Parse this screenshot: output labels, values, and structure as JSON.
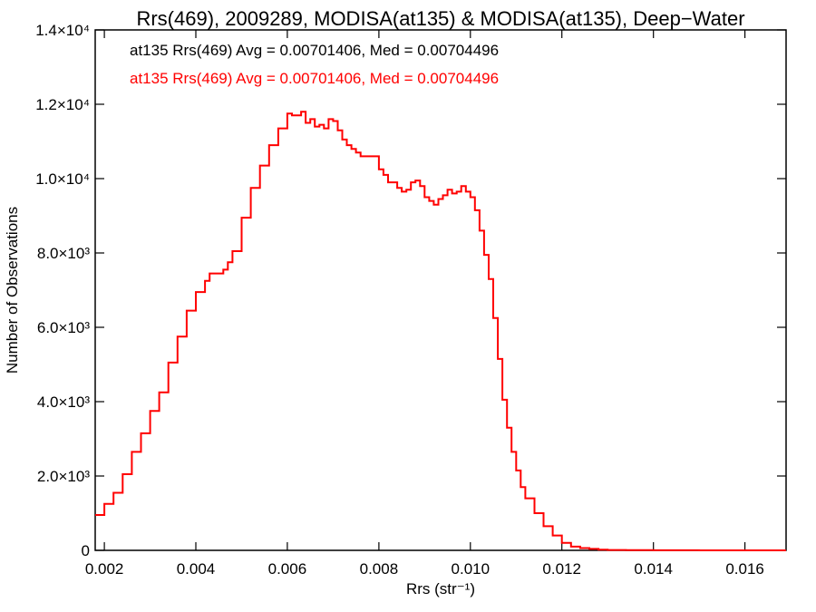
{
  "chart_data": {
    "type": "line",
    "title": "Rrs(469), 2009289, MODISA(at135) & MODISA(at135), Deep−Water",
    "xlabel": "Rrs (str⁻¹)",
    "ylabel": "Number of Observations",
    "xlim": [
      0.0018,
      0.0169
    ],
    "ylim": [
      0,
      14000
    ],
    "x_ticks": [
      {
        "value": 0.002,
        "label": "0.002"
      },
      {
        "value": 0.004,
        "label": "0.004"
      },
      {
        "value": 0.006,
        "label": "0.006"
      },
      {
        "value": 0.008,
        "label": "0.008"
      },
      {
        "value": 0.01,
        "label": "0.010"
      },
      {
        "value": 0.012,
        "label": "0.012"
      },
      {
        "value": 0.014,
        "label": "0.014"
      },
      {
        "value": 0.016,
        "label": "0.016"
      }
    ],
    "y_ticks": [
      {
        "value": 0,
        "label": "0"
      },
      {
        "value": 2000,
        "label": "2.0×10³"
      },
      {
        "value": 4000,
        "label": "4.0×10³"
      },
      {
        "value": 6000,
        "label": "6.0×10³"
      },
      {
        "value": 8000,
        "label": "8.0×10³"
      },
      {
        "value": 10000,
        "label": "1.0×10⁴"
      },
      {
        "value": 12000,
        "label": "1.2×10⁴"
      },
      {
        "value": 14000,
        "label": "1.4×10⁴"
      }
    ],
    "annotations": [
      {
        "text": "at135 Rrs(469) Avg = 0.00701406, Med = 0.00704496",
        "color": "#000000"
      },
      {
        "text": "at135 Rrs(469) Avg = 0.00701406, Med = 0.00704496",
        "color": "#ff0000"
      }
    ],
    "series": [
      {
        "color": "#ff0000",
        "x": [
          0.0018,
          0.002,
          0.0022,
          0.0024,
          0.0026,
          0.0028,
          0.003,
          0.0032,
          0.0034,
          0.0036,
          0.0038,
          0.004,
          0.0042,
          0.0043,
          0.0044,
          0.0046,
          0.0047,
          0.0048,
          0.005,
          0.0052,
          0.0054,
          0.0056,
          0.0058,
          0.006,
          0.0061,
          0.0063,
          0.0064,
          0.0065,
          0.0066,
          0.0067,
          0.0068,
          0.0069,
          0.007,
          0.0071,
          0.0072,
          0.0073,
          0.0074,
          0.0075,
          0.0076,
          0.0077,
          0.0078,
          0.008,
          0.0081,
          0.0082,
          0.0084,
          0.0085,
          0.0086,
          0.0087,
          0.0088,
          0.0089,
          0.009,
          0.0091,
          0.0092,
          0.0093,
          0.0094,
          0.0095,
          0.0096,
          0.0097,
          0.0098,
          0.0099,
          0.01,
          0.0101,
          0.0102,
          0.0103,
          0.0104,
          0.0105,
          0.0106,
          0.0107,
          0.0108,
          0.0109,
          0.011,
          0.0111,
          0.0112,
          0.0114,
          0.0116,
          0.0118,
          0.012,
          0.0122,
          0.0124,
          0.0126,
          0.0128,
          0.013,
          0.0134,
          0.014,
          0.015,
          0.0169
        ],
        "y": [
          950,
          1250,
          1550,
          2050,
          2650,
          3150,
          3750,
          4250,
          5050,
          5750,
          6450,
          6950,
          7250,
          7450,
          7450,
          7550,
          7750,
          8050,
          8950,
          9750,
          10350,
          10900,
          11350,
          11750,
          11700,
          11800,
          11500,
          11600,
          11400,
          11450,
          11350,
          11600,
          11550,
          11300,
          11050,
          10900,
          10800,
          10700,
          10600,
          10600,
          10600,
          10250,
          10100,
          9900,
          9750,
          9650,
          9700,
          9900,
          9950,
          9800,
          9500,
          9400,
          9300,
          9450,
          9550,
          9700,
          9600,
          9650,
          9800,
          9650,
          9500,
          9150,
          8600,
          7950,
          7300,
          6250,
          5150,
          4050,
          3300,
          2650,
          2150,
          1700,
          1400,
          1000,
          650,
          400,
          200,
          100,
          60,
          40,
          20,
          10,
          6,
          3,
          1,
          0
        ]
      }
    ]
  }
}
